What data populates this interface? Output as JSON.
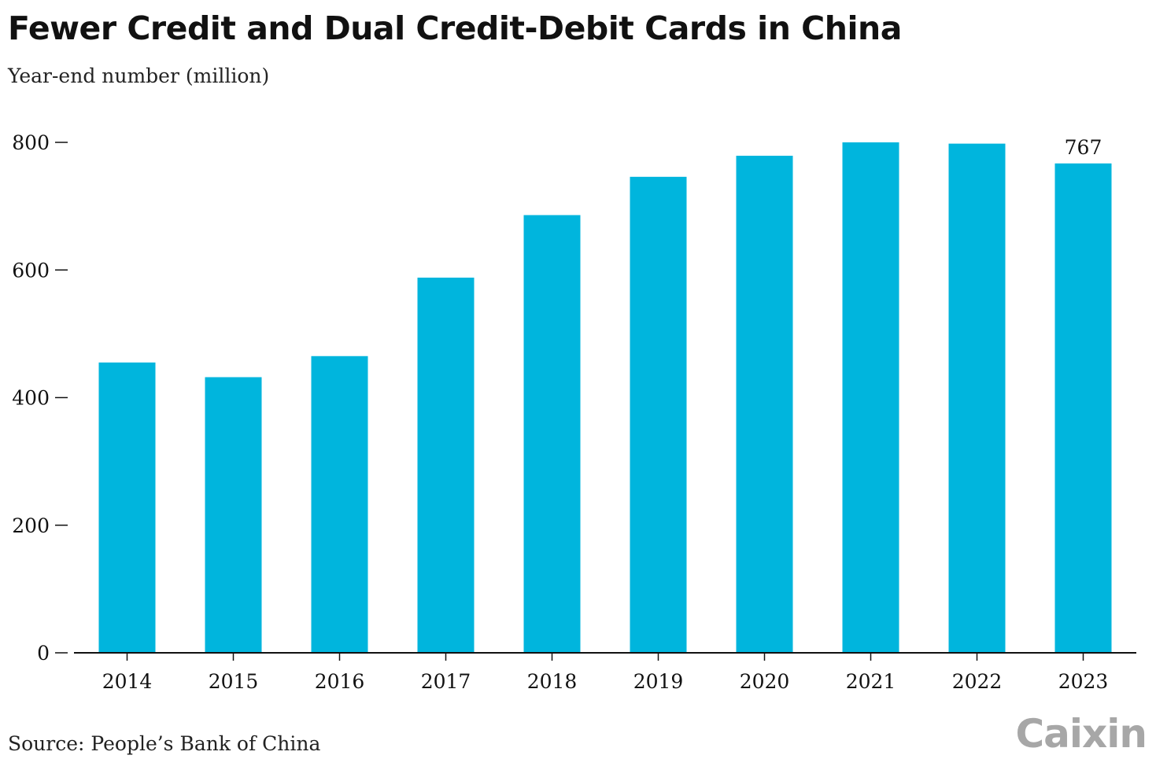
{
  "header": {
    "title": "Fewer Credit and Dual Credit-Debit Cards in China",
    "subtitle": "Year-end number (million)"
  },
  "footer": {
    "source": "Source: People’s Bank of China",
    "brand": "Caixin"
  },
  "colors": {
    "bar": "#00b5dd",
    "axis": "#111111",
    "text": "#111111",
    "brand": "#a7a7a7"
  },
  "chart_data": {
    "type": "bar",
    "title": "Fewer Credit and Dual Credit-Debit Cards in China",
    "subtitle": "Year-end number (million)",
    "xlabel": "",
    "ylabel": "",
    "categories": [
      "2014",
      "2015",
      "2016",
      "2017",
      "2018",
      "2019",
      "2020",
      "2021",
      "2022",
      "2023"
    ],
    "series": [
      {
        "values": [
          455,
          432,
          465,
          588,
          686,
          746,
          779,
          800,
          798,
          767
        ]
      }
    ],
    "ylim": [
      0,
      800
    ],
    "yticks": [
      0,
      200,
      400,
      600,
      800
    ],
    "ytick_labels": [
      "0",
      "200",
      "400",
      "600",
      "800"
    ],
    "data_labels": [
      {
        "category": "2023",
        "text": "767"
      }
    ],
    "grid": false,
    "legend": "none"
  }
}
